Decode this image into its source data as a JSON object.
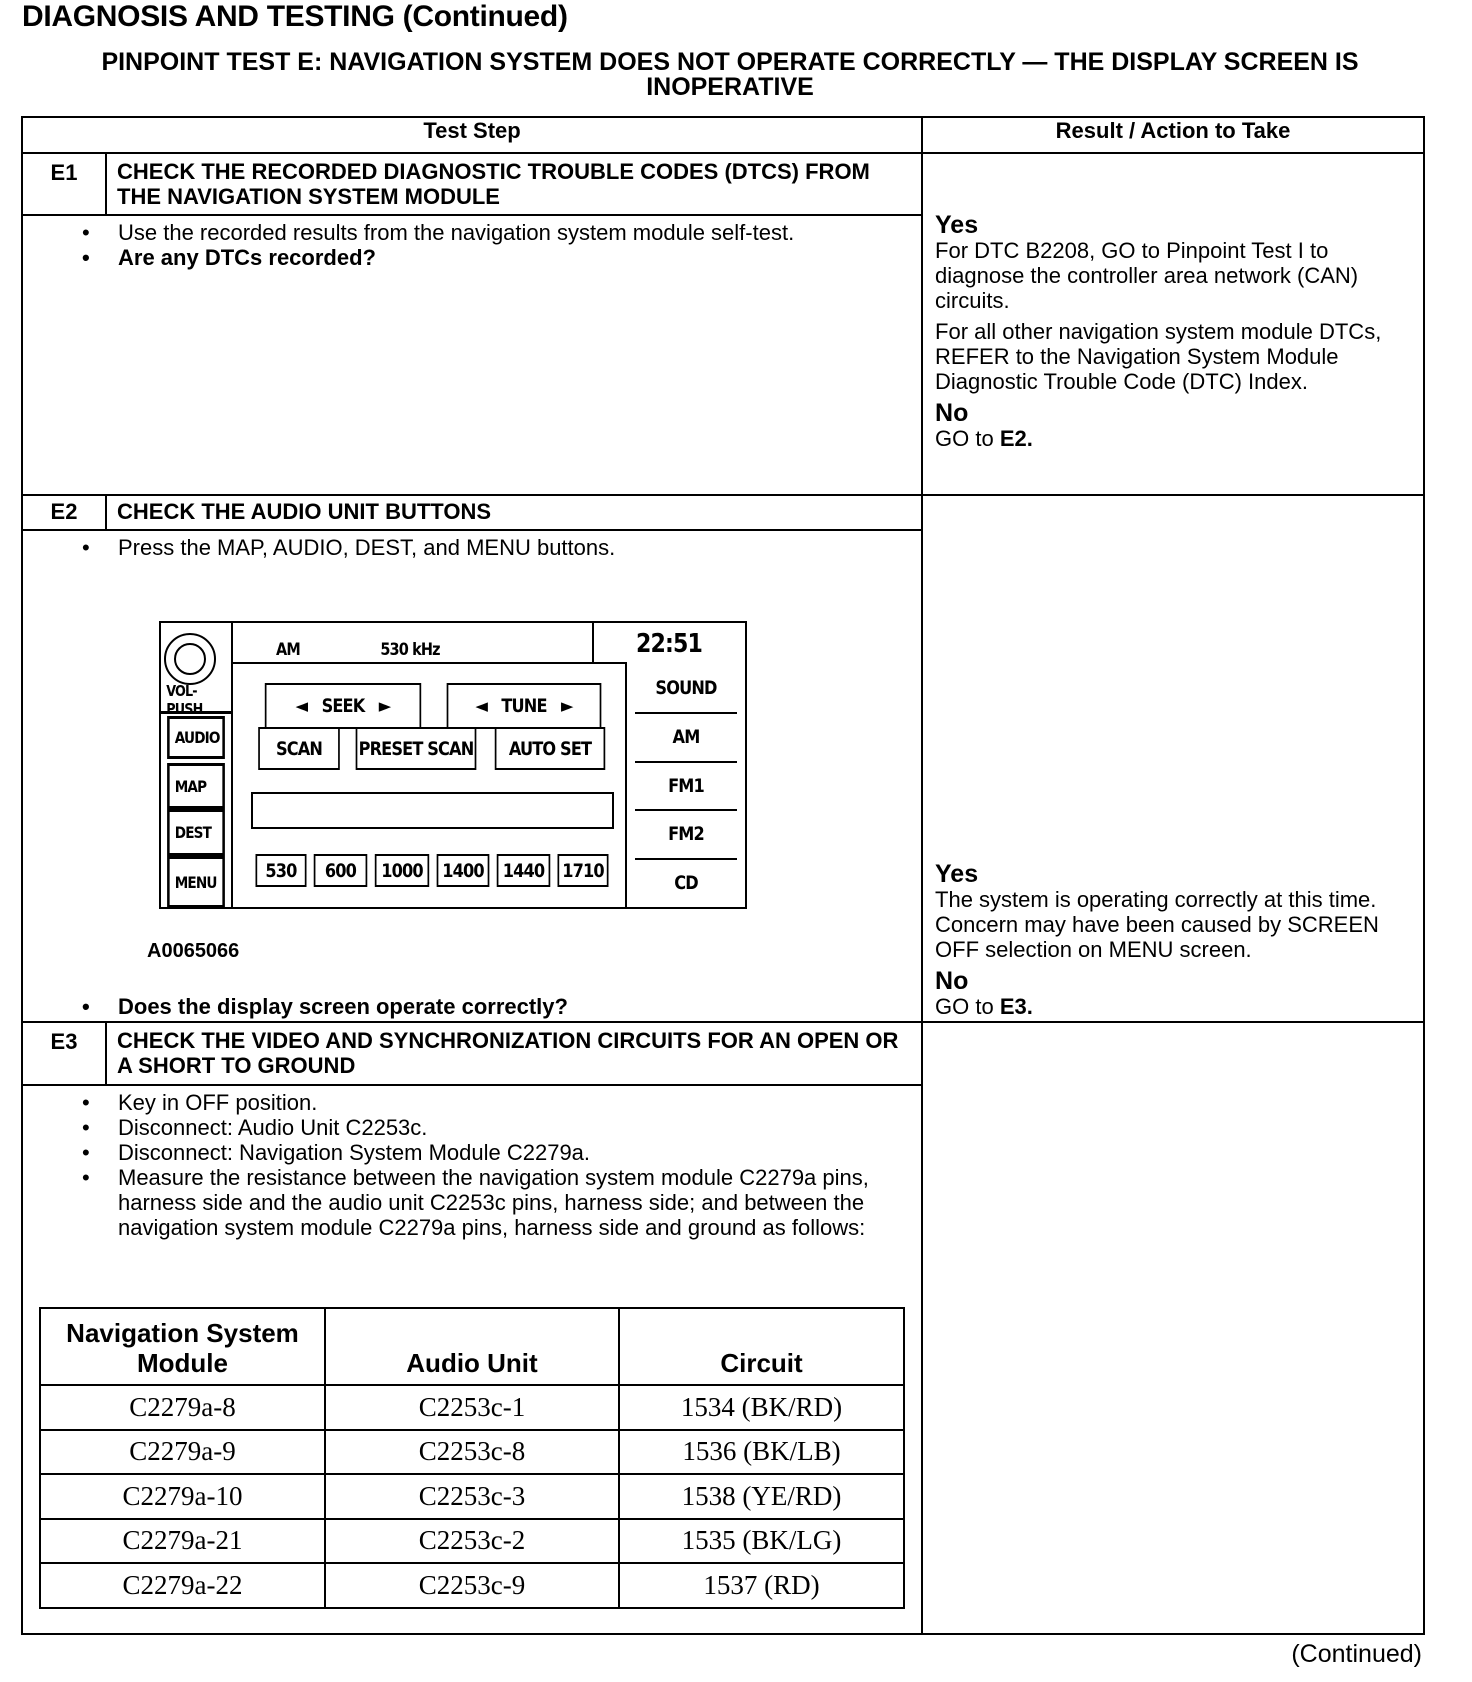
{
  "title": "DIAGNOSIS AND TESTING (Continued)",
  "subtitle": "PINPOINT TEST E: NAVIGATION SYSTEM DOES NOT OPERATE CORRECTLY — THE DISPLAY SCREEN IS INOPERATIVE",
  "headers": {
    "step": "Test Step",
    "result": "Result / Action to Take"
  },
  "steps": [
    {
      "id": "E1",
      "heading": "CHECK THE RECORDED DIAGNOSTIC TROUBLE CODES (DTCS) FROM THE NAVIGATION SYSTEM MODULE",
      "bullets": [
        "Use the recorded results from the navigation system module self-test.",
        "Are any DTCs recorded?"
      ],
      "yes_label": "Yes",
      "yes_text": "For DTC B2208, GO to Pinpoint Test I to diagnose the controller area network (CAN) circuits.",
      "yes_text2": "For all other navigation system module DTCs, REFER to the Navigation System Module Diagnostic Trouble Code (DTC) Index.",
      "no_label": "No",
      "no_text": "GO to ",
      "no_target": "E2."
    },
    {
      "id": "E2",
      "heading": "CHECK THE AUDIO UNIT BUTTONS",
      "bullets": [
        "Press the MAP, AUDIO, DEST, and MENU buttons.",
        "Does the display screen operate correctly?"
      ],
      "figure_id": "A0065066",
      "yes_label": "Yes",
      "yes_text": "The system is operating correctly at this time. Concern may have been caused by SCREEN OFF selection on MENU screen.",
      "no_label": "No",
      "no_text": "GO to ",
      "no_target": "E3."
    },
    {
      "id": "E3",
      "heading": "CHECK THE VIDEO AND SYNCHRONIZATION CIRCUITS FOR AN OPEN OR A SHORT TO GROUND",
      "bullets": [
        "Key in OFF position.",
        "Disconnect: Audio Unit C2253c.",
        "Disconnect: Navigation System Module C2279a.",
        "Measure the resistance between the navigation system module C2279a pins, harness side and the audio unit C2253c pins, harness side; and between the navigation system module C2279a pins, harness side and ground as follows:"
      ]
    }
  ],
  "radio": {
    "knob_label": "VOL-PUSH",
    "band": "AM",
    "freq": "530 kHz",
    "clock": "22:51",
    "left_buttons": [
      "AUDIO",
      "MAP",
      "DEST",
      "MENU"
    ],
    "right_buttons": [
      "SOUND",
      "AM",
      "FM1",
      "FM2",
      "CD"
    ],
    "seek": "SEEK",
    "tune": "TUNE",
    "left_arrow": "◄",
    "right_arrow": "►",
    "mode_buttons": [
      "SCAN",
      "PRESET SCAN",
      "AUTO SET"
    ],
    "presets": [
      "530",
      "600",
      "1000",
      "1400",
      "1440",
      "1710"
    ]
  },
  "circuit_table": {
    "headers": [
      "Navigation System Module",
      "Audio Unit",
      "Circuit"
    ],
    "rows": [
      [
        "C2279a-8",
        "C2253c-1",
        "1534 (BK/RD)"
      ],
      [
        "C2279a-9",
        "C2253c-8",
        "1536 (BK/LB)"
      ],
      [
        "C2279a-10",
        "C2253c-3",
        "1538 (YE/RD)"
      ],
      [
        "C2279a-21",
        "C2253c-2",
        "1535 (BK/LG)"
      ],
      [
        "C2279a-22",
        "C2253c-9",
        "1537 (RD)"
      ]
    ]
  },
  "footer": "(Continued)"
}
